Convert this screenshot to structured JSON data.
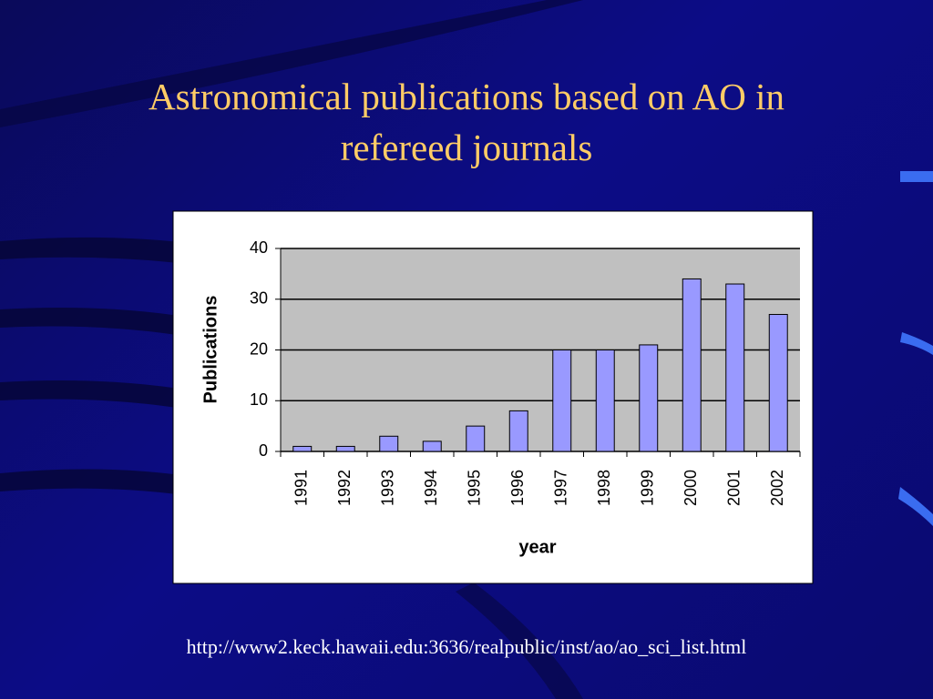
{
  "title": "Astronomical publications based on AO in refereed journals",
  "source": "http://www2.keck.hawaii.edu:3636/realpublic/inst/ao/ao_sci_list.html",
  "chart_data": {
    "type": "bar",
    "categories": [
      "1991",
      "1992",
      "1993",
      "1994",
      "1995",
      "1996",
      "1997",
      "1998",
      "1999",
      "2000",
      "2001",
      "2002"
    ],
    "values": [
      1,
      1,
      3,
      2,
      5,
      8,
      20,
      20,
      21,
      34,
      33,
      27
    ],
    "color": "#9999ff",
    "x_label": "year",
    "y_label": "Publications",
    "ylim": [
      0,
      40
    ],
    "yticks": [
      0,
      10,
      20,
      30,
      40
    ],
    "grid": true
  }
}
